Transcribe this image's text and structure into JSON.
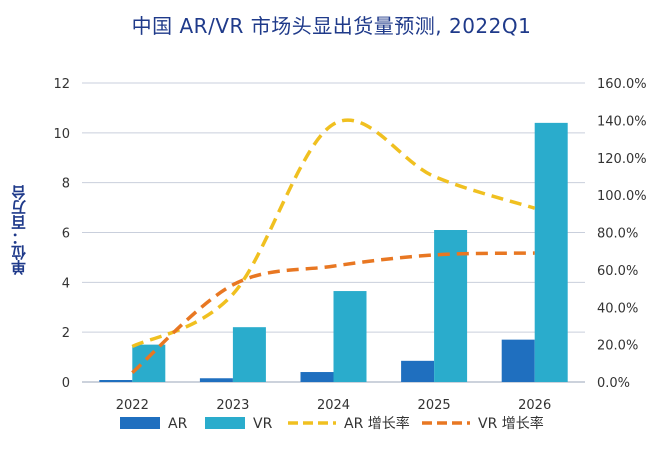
{
  "chart_data": {
    "type": "bar",
    "title": "中国 AR/VR 市场头显出货量预测, 2022Q1",
    "ylabel": "单位：百万台",
    "categories": [
      "2022",
      "2023",
      "2024",
      "2025",
      "2026"
    ],
    "ylim": [
      0,
      12
    ],
    "y_ticks": [
      "0",
      "2",
      "4",
      "6",
      "8",
      "10",
      "12"
    ],
    "y2lim": [
      0,
      160
    ],
    "y2_ticks": [
      "0.0%",
      "20.0%",
      "40.0%",
      "60.0%",
      "80.0%",
      "100.0%",
      "120.0%",
      "140.0%",
      "160.0%"
    ],
    "grid": true,
    "legend_position": "bottom",
    "series": [
      {
        "name": "AR",
        "kind": "bar",
        "axis": "left",
        "color": "#1f6fbf",
        "values": [
          0.08,
          0.15,
          0.4,
          0.85,
          1.7
        ]
      },
      {
        "name": "VR",
        "kind": "bar",
        "axis": "left",
        "color": "#2aaccc",
        "values": [
          1.5,
          2.2,
          3.65,
          6.1,
          10.4
        ]
      },
      {
        "name": "AR 增长率",
        "kind": "line",
        "axis": "right",
        "color": "#f0c020",
        "values": [
          19,
          47,
          138,
          110,
          93
        ]
      },
      {
        "name": "VR 增长率",
        "kind": "line",
        "axis": "right",
        "color": "#e87722",
        "values": [
          5,
          52,
          62,
          68,
          69
        ]
      }
    ]
  }
}
